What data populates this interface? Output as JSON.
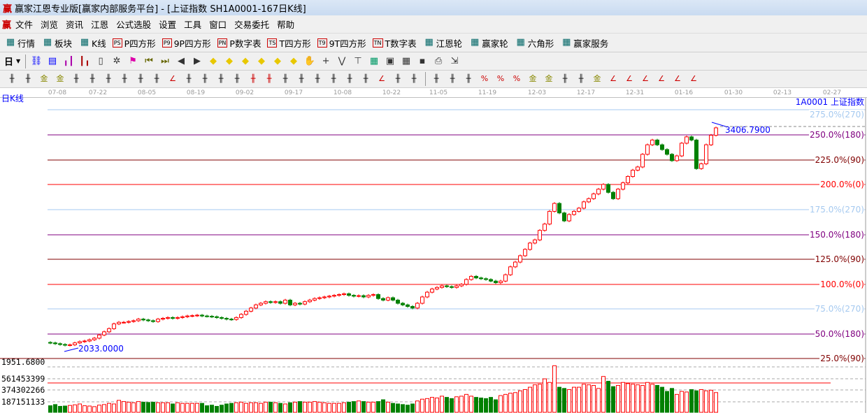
{
  "window": {
    "logo": "赢",
    "title": "赢家江恩专业版[赢家内部服务平台] - [上证指数  SH1A0001-167日K线]"
  },
  "menu": {
    "logo": "赢",
    "items": [
      "文件",
      "浏览",
      "资讯",
      "江恩",
      "公式选股",
      "设置",
      "工具",
      "窗口",
      "交易委托",
      "帮助"
    ]
  },
  "toolbar1": [
    {
      "icon": "table-icon",
      "badge": "",
      "label": "行情"
    },
    {
      "icon": "blocks-icon",
      "badge": "",
      "label": "板块"
    },
    {
      "icon": "kline-icon",
      "badge": "",
      "label": "K线"
    },
    {
      "icon": "ps-icon",
      "badge": "PS",
      "label": "P四方形"
    },
    {
      "icon": "p9-icon",
      "badge": "P9",
      "label": "9P四方形"
    },
    {
      "icon": "pn-icon",
      "badge": "PN",
      "label": "P数字表"
    },
    {
      "icon": "ts-icon",
      "badge": "TS",
      "label": "T四方形"
    },
    {
      "icon": "t9-icon",
      "badge": "T9",
      "label": "9T四方形"
    },
    {
      "icon": "tn-icon",
      "badge": "TN",
      "label": "T数字表"
    },
    {
      "icon": "gann-wheel-icon",
      "badge": "",
      "label": "江恩轮"
    },
    {
      "icon": "winner-wheel-icon",
      "badge": "",
      "label": "赢家轮"
    },
    {
      "icon": "hexagon-icon",
      "badge": "",
      "label": "六角形"
    },
    {
      "icon": "dollar-icon",
      "badge": "",
      "label": "赢家服务"
    }
  ],
  "toolbar2": {
    "period": "日",
    "icons": [
      "chain-icon",
      "document-icon",
      "bars3-icon",
      "bars9-icon",
      "candle-icon",
      "pattern-icon",
      "flag-icon",
      "first-icon",
      "last-icon",
      "prev-icon",
      "next-icon",
      "diamond-left-icon",
      "diamond-right-icon",
      "diamond-expand-icon",
      "diamond-shrink-icon",
      "diamond-star-icon",
      "diamond-updown-icon",
      "hand-icon",
      "crosshair-icon",
      "zigzag-icon",
      "puzzle-icon",
      "grid-green-icon",
      "calendar-icon",
      "calculator-icon",
      "save-icon",
      "print-icon",
      "export-icon"
    ]
  },
  "toolbar3": [
    "pen-icon",
    "lines-icon",
    "gold-line-icon",
    "gold-line2-icon",
    "fib-icon",
    "spiral-icon",
    "pen2-icon",
    "circle-icon",
    "hash-icon",
    "n2-icon",
    "triangle-icon",
    "target-icon",
    "web-icon",
    "square-icon",
    "parallel-icon",
    "fan-red-icon",
    "fan-red2-icon",
    "ruler-icon",
    "range-icon",
    "box-icon",
    "fan-icon",
    "boxcross-icon",
    "boxcross2-icon",
    "angle-icon",
    "v-icon",
    "grid-icon",
    "grid2-icon",
    "slant-icon",
    "bars-icon",
    "percent-slash-icon",
    "percent-icon",
    "percent-line-icon",
    "gold-circle-icon",
    "gold-lines-icon",
    "pencil-icon",
    "wave-icon",
    "gold-icon",
    "j-angle-icon",
    "f-angle-icon",
    "gold-angle-icon",
    "shen-angle-icon",
    "ying-angle-icon",
    "four-angle-icon"
  ],
  "chart": {
    "period_label": "日K线",
    "stock_label": "1A0001  上证指数",
    "dates": [
      "07-08",
      "07-22",
      "08-05",
      "08-19",
      "09-02",
      "09-17",
      "10-08",
      "10-22",
      "11-05",
      "11-19",
      "12-03",
      "12-17",
      "12-31",
      "01-16",
      "01-30",
      "02-13",
      "02-27"
    ],
    "levels": [
      {
        "label": "275.0%(270)",
        "color": "#a6caf0"
      },
      {
        "label": "250.0%(180)",
        "color": "#800080"
      },
      {
        "label": "225.0%(90)",
        "color": "#800000"
      },
      {
        "label": "200.0%(0)",
        "color": "#ff0000"
      },
      {
        "label": "175.0%(270)",
        "color": "#a6caf0"
      },
      {
        "label": "150.0%(180)",
        "color": "#800080"
      },
      {
        "label": "125.0%(90)",
        "color": "#800000"
      },
      {
        "label": "100.0%(0)",
        "color": "#ff0000"
      },
      {
        "label": "75.0%(270)",
        "color": "#a6caf0"
      },
      {
        "label": "50.0%(180)",
        "color": "#800080"
      },
      {
        "label": "25.0%(90)",
        "color": "#800000"
      }
    ],
    "high_marker": "3406.7900",
    "low_marker": "2033.0000",
    "price_axis_label": "1951.6800",
    "volume_axis": [
      "561453399",
      "374302266",
      "187151133"
    ],
    "up_color": "#ff0000",
    "down_color": "#008000"
  },
  "chart_data": {
    "type": "candlestick",
    "closes": [
      2050,
      2045,
      2040,
      2036,
      2038,
      2050,
      2058,
      2062,
      2070,
      2080,
      2100,
      2120,
      2140,
      2170,
      2180,
      2180,
      2185,
      2190,
      2200,
      2195,
      2190,
      2185,
      2200,
      2205,
      2210,
      2205,
      2210,
      2215,
      2220,
      2222,
      2225,
      2220,
      2218,
      2215,
      2210,
      2205,
      2200,
      2198,
      2210,
      2230,
      2250,
      2270,
      2290,
      2300,
      2310,
      2305,
      2310,
      2300,
      2320,
      2290,
      2300,
      2295,
      2310,
      2320,
      2330,
      2335,
      2340,
      2345,
      2350,
      2355,
      2360,
      2350,
      2345,
      2348,
      2340,
      2350,
      2355,
      2330,
      2320,
      2335,
      2320,
      2300,
      2290,
      2280,
      2270,
      2300,
      2340,
      2370,
      2390,
      2400,
      2410,
      2405,
      2400,
      2410,
      2420,
      2450,
      2470,
      2460,
      2455,
      2450,
      2440,
      2430,
      2440,
      2480,
      2530,
      2560,
      2600,
      2640,
      2680,
      2700,
      2760,
      2800,
      2880,
      2930,
      2870,
      2820,
      2860,
      2880,
      2900,
      2940,
      2960,
      2990,
      3020,
      3050,
      3000,
      2960,
      3020,
      3060,
      3100,
      3140,
      3160,
      3240,
      3300,
      3330,
      3300,
      3270,
      3240,
      3200,
      3230,
      3310,
      3350,
      3330,
      3150,
      3180,
      3300,
      3360,
      3406.79
    ],
    "volumes_millions": [
      110,
      130,
      100,
      105,
      115,
      125,
      140,
      110,
      105,
      95,
      120,
      130,
      150,
      140,
      200,
      180,
      170,
      160,
      180,
      170,
      165,
      170,
      160,
      160,
      160,
      140,
      160,
      150,
      150,
      150,
      150,
      150,
      110,
      120,
      100,
      120,
      140,
      150,
      160,
      170,
      150,
      160,
      160,
      150,
      170,
      170,
      160,
      150,
      140,
      160,
      170,
      180,
      170,
      170,
      180,
      170,
      160,
      150,
      150,
      150,
      160,
      170,
      180,
      190,
      180,
      170,
      170,
      180,
      210,
      170,
      150,
      140,
      130,
      120,
      140,
      190,
      220,
      230,
      250,
      240,
      270,
      250,
      230,
      260,
      270,
      300,
      270,
      250,
      240,
      230,
      250,
      210,
      280,
      300,
      320,
      330,
      360,
      380,
      420,
      460,
      470,
      560,
      500,
      780,
      420,
      400,
      380,
      420,
      420,
      470,
      460,
      450,
      400,
      600,
      520,
      430,
      450,
      500,
      480,
      470,
      460,
      450,
      500,
      470,
      450,
      420,
      350,
      400,
      300,
      350,
      340,
      380,
      360,
      380,
      360,
      370,
      330
    ]
  }
}
